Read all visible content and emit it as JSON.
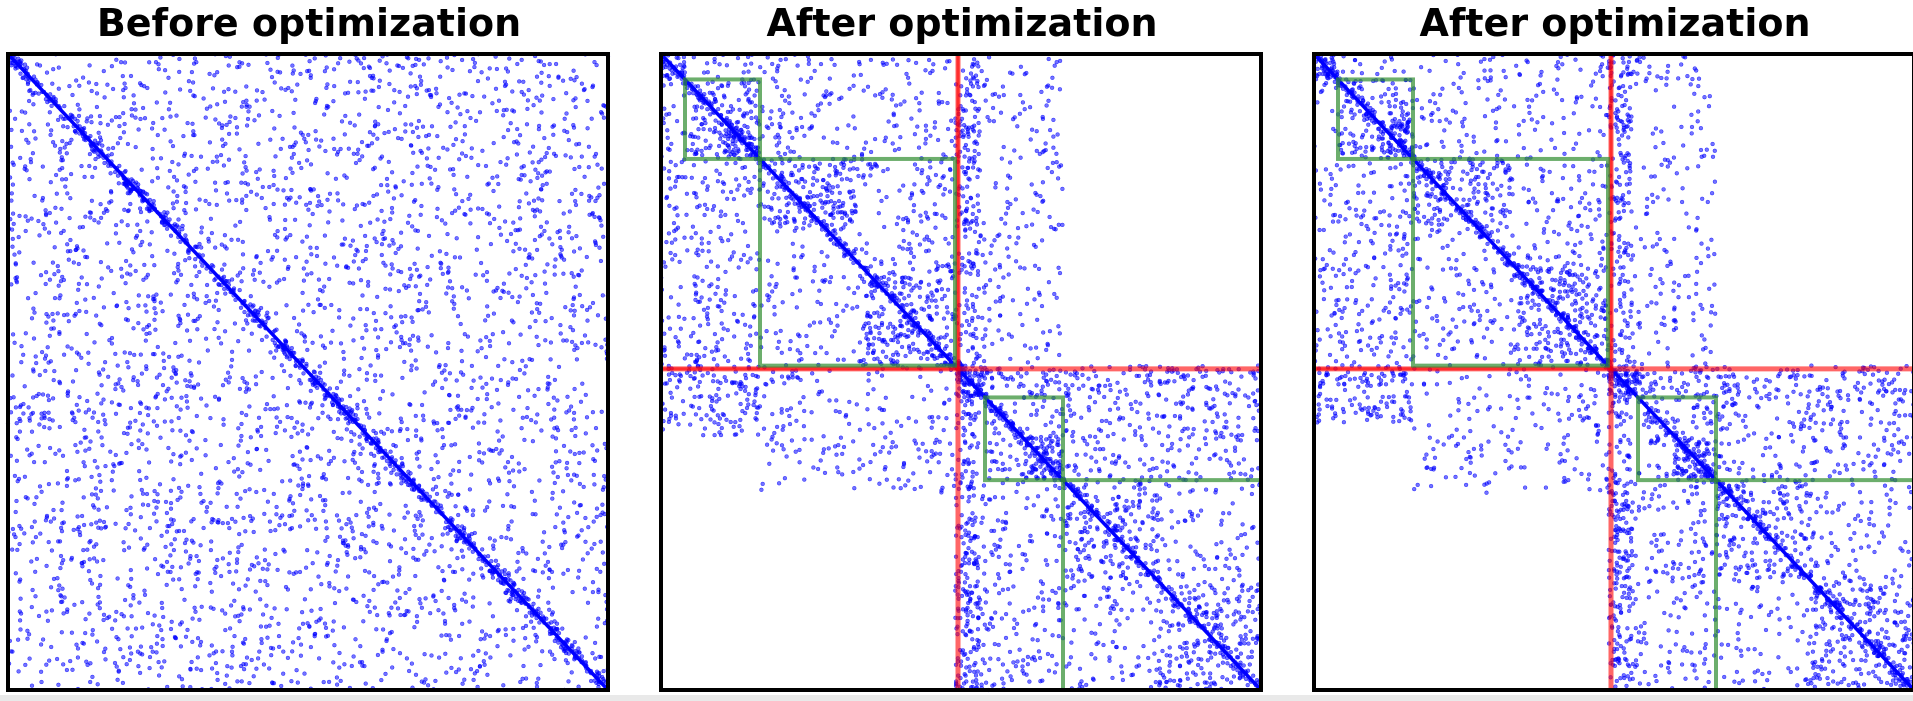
{
  "chart_data": [
    {
      "type": "scatter",
      "title": "Before optimization",
      "xlim": [
        0,
        1
      ],
      "ylim": [
        0,
        1
      ],
      "y_inverted": true,
      "grid": false,
      "legend": "none",
      "point_color": "#0000ff",
      "diagonal": {
        "from": 0,
        "to": 1
      },
      "point_density": {
        "background": 3400,
        "diagonal_band": 700
      },
      "groups": [],
      "splits": []
    },
    {
      "type": "scatter",
      "title": "After optimization",
      "xlim": [
        0,
        1
      ],
      "ylim": [
        0,
        1
      ],
      "y_inverted": true,
      "grid": false,
      "legend": "none",
      "point_color": "#0000ff",
      "group_border_color": "#2e8b2e",
      "split_color": "#ff0000",
      "diagonal": {
        "from": 0,
        "to": 1
      },
      "clusters": [
        {
          "x": [
            0.0,
            0.04
          ],
          "y": [
            0.0,
            0.04
          ],
          "density": 1.0
        },
        {
          "x": [
            0.04,
            0.165
          ],
          "y": [
            0.04,
            0.165
          ],
          "density": 0.45
        },
        {
          "x": [
            0.105,
            0.165
          ],
          "y": [
            0.105,
            0.165
          ],
          "density": 1.0
        },
        {
          "x": [
            0.165,
            0.49
          ],
          "y": [
            0.165,
            0.49
          ],
          "density": 0.35
        },
        {
          "x": [
            0.49,
            0.54
          ],
          "y": [
            0.49,
            0.54
          ],
          "density": 1.0
        },
        {
          "x": [
            0.54,
            0.67
          ],
          "y": [
            0.54,
            0.67
          ],
          "density": 0.45
        },
        {
          "x": [
            0.6,
            0.67
          ],
          "y": [
            0.6,
            0.67
          ],
          "density": 1.0
        },
        {
          "x": [
            0.67,
            1.0
          ],
          "y": [
            0.67,
            1.0
          ],
          "density": 0.3
        }
      ],
      "off_diagonal_blocks": [
        {
          "x": [
            0.0,
            0.49
          ],
          "y": [
            0.0,
            0.165
          ],
          "count": 260
        },
        {
          "x": [
            0.0,
            0.165
          ],
          "y": [
            0.165,
            0.49
          ],
          "count": 230
        },
        {
          "x": [
            0.165,
            0.33
          ],
          "y": [
            0.165,
            0.27
          ],
          "count": 120
        },
        {
          "x": [
            0.33,
            0.49
          ],
          "y": [
            0.33,
            0.49
          ],
          "count": 170
        },
        {
          "x": [
            0.49,
            0.67
          ],
          "y": [
            0.0,
            0.49
          ],
          "count": 230
        },
        {
          "x": [
            0.49,
            0.53
          ],
          "y": [
            0.0,
            1.0
          ],
          "count": 350
        },
        {
          "x": [
            0.0,
            0.165
          ],
          "y": [
            0.49,
            0.6
          ],
          "count": 140
        },
        {
          "x": [
            0.165,
            0.49
          ],
          "y": [
            0.49,
            0.69
          ],
          "count": 190
        },
        {
          "x": [
            0.49,
            1.0
          ],
          "y": [
            0.49,
            0.54
          ],
          "count": 190
        },
        {
          "x": [
            0.67,
            1.0
          ],
          "y": [
            0.54,
            0.67
          ],
          "count": 200
        },
        {
          "x": [
            0.49,
            0.67
          ],
          "y": [
            0.67,
            1.0
          ],
          "count": 230
        },
        {
          "x": [
            0.83,
            1.0
          ],
          "y": [
            0.83,
            1.0
          ],
          "count": 170
        },
        {
          "x": [
            0.67,
            0.83
          ],
          "y": [
            0.67,
            0.83
          ],
          "count": 120
        }
      ],
      "groups": [
        {
          "x": [
            0.04,
            0.165
          ],
          "y": [
            0.04,
            0.165
          ]
        },
        {
          "x": [
            0.165,
            0.49
          ],
          "y": [
            0.165,
            0.49
          ]
        },
        {
          "x": [
            0.54,
            0.67
          ],
          "y": [
            0.54,
            0.67
          ]
        },
        {
          "x": [
            0.67,
            1.0
          ],
          "y": [
            0.67,
            1.0
          ]
        }
      ],
      "splits": [
        {
          "at": 0.495,
          "orientation": "vertical"
        },
        {
          "at": 0.495,
          "orientation": "horizontal"
        }
      ]
    },
    {
      "type": "scatter",
      "title": "After optimization",
      "xlim": [
        0,
        1
      ],
      "ylim": [
        0,
        1
      ],
      "y_inverted": true,
      "grid": false,
      "legend": "none",
      "point_color": "#0000ff",
      "group_border_color": "#2e8b2e",
      "split_color": "#ff0000",
      "diagonal": {
        "from": 0,
        "to": 1
      },
      "clusters": [
        {
          "x": [
            0.0,
            0.04
          ],
          "y": [
            0.0,
            0.04
          ],
          "density": 1.0
        },
        {
          "x": [
            0.04,
            0.165
          ],
          "y": [
            0.04,
            0.165
          ],
          "density": 0.45
        },
        {
          "x": [
            0.105,
            0.165
          ],
          "y": [
            0.105,
            0.165
          ],
          "density": 1.0
        },
        {
          "x": [
            0.165,
            0.49
          ],
          "y": [
            0.165,
            0.49
          ],
          "density": 0.35
        },
        {
          "x": [
            0.49,
            0.54
          ],
          "y": [
            0.49,
            0.54
          ],
          "density": 1.0
        },
        {
          "x": [
            0.54,
            0.67
          ],
          "y": [
            0.54,
            0.67
          ],
          "density": 0.45
        },
        {
          "x": [
            0.6,
            0.67
          ],
          "y": [
            0.6,
            0.67
          ],
          "density": 1.0
        },
        {
          "x": [
            0.67,
            1.0
          ],
          "y": [
            0.67,
            1.0
          ],
          "density": 0.3
        }
      ],
      "off_diagonal_blocks": [
        {
          "x": [
            0.0,
            0.49
          ],
          "y": [
            0.0,
            0.165
          ],
          "count": 240
        },
        {
          "x": [
            0.0,
            0.165
          ],
          "y": [
            0.165,
            0.49
          ],
          "count": 220
        },
        {
          "x": [
            0.165,
            0.33
          ],
          "y": [
            0.165,
            0.27
          ],
          "count": 110
        },
        {
          "x": [
            0.33,
            0.49
          ],
          "y": [
            0.33,
            0.49
          ],
          "count": 160
        },
        {
          "x": [
            0.49,
            0.67
          ],
          "y": [
            0.0,
            0.49
          ],
          "count": 210
        },
        {
          "x": [
            0.49,
            0.53
          ],
          "y": [
            0.0,
            1.0
          ],
          "count": 330
        },
        {
          "x": [
            0.0,
            0.165
          ],
          "y": [
            0.49,
            0.58
          ],
          "count": 130
        },
        {
          "x": [
            0.165,
            0.49
          ],
          "y": [
            0.49,
            0.69
          ],
          "count": 170
        },
        {
          "x": [
            0.49,
            1.0
          ],
          "y": [
            0.49,
            0.54
          ],
          "count": 190
        },
        {
          "x": [
            0.67,
            1.0
          ],
          "y": [
            0.54,
            0.67
          ],
          "count": 190
        },
        {
          "x": [
            0.49,
            0.67
          ],
          "y": [
            0.67,
            1.0
          ],
          "count": 210
        },
        {
          "x": [
            0.83,
            1.0
          ],
          "y": [
            0.83,
            1.0
          ],
          "count": 170
        },
        {
          "x": [
            0.67,
            0.83
          ],
          "y": [
            0.67,
            0.83
          ],
          "count": 120
        }
      ],
      "groups": [
        {
          "x": [
            0.04,
            0.165
          ],
          "y": [
            0.04,
            0.165
          ]
        },
        {
          "x": [
            0.165,
            0.49
          ],
          "y": [
            0.165,
            0.49
          ]
        },
        {
          "x": [
            0.54,
            0.67
          ],
          "y": [
            0.54,
            0.67
          ]
        },
        {
          "x": [
            0.67,
            1.0
          ],
          "y": [
            0.67,
            1.0
          ]
        }
      ],
      "splits": [
        {
          "at": 0.495,
          "orientation": "vertical"
        },
        {
          "at": 0.495,
          "orientation": "horizontal"
        }
      ]
    }
  ]
}
